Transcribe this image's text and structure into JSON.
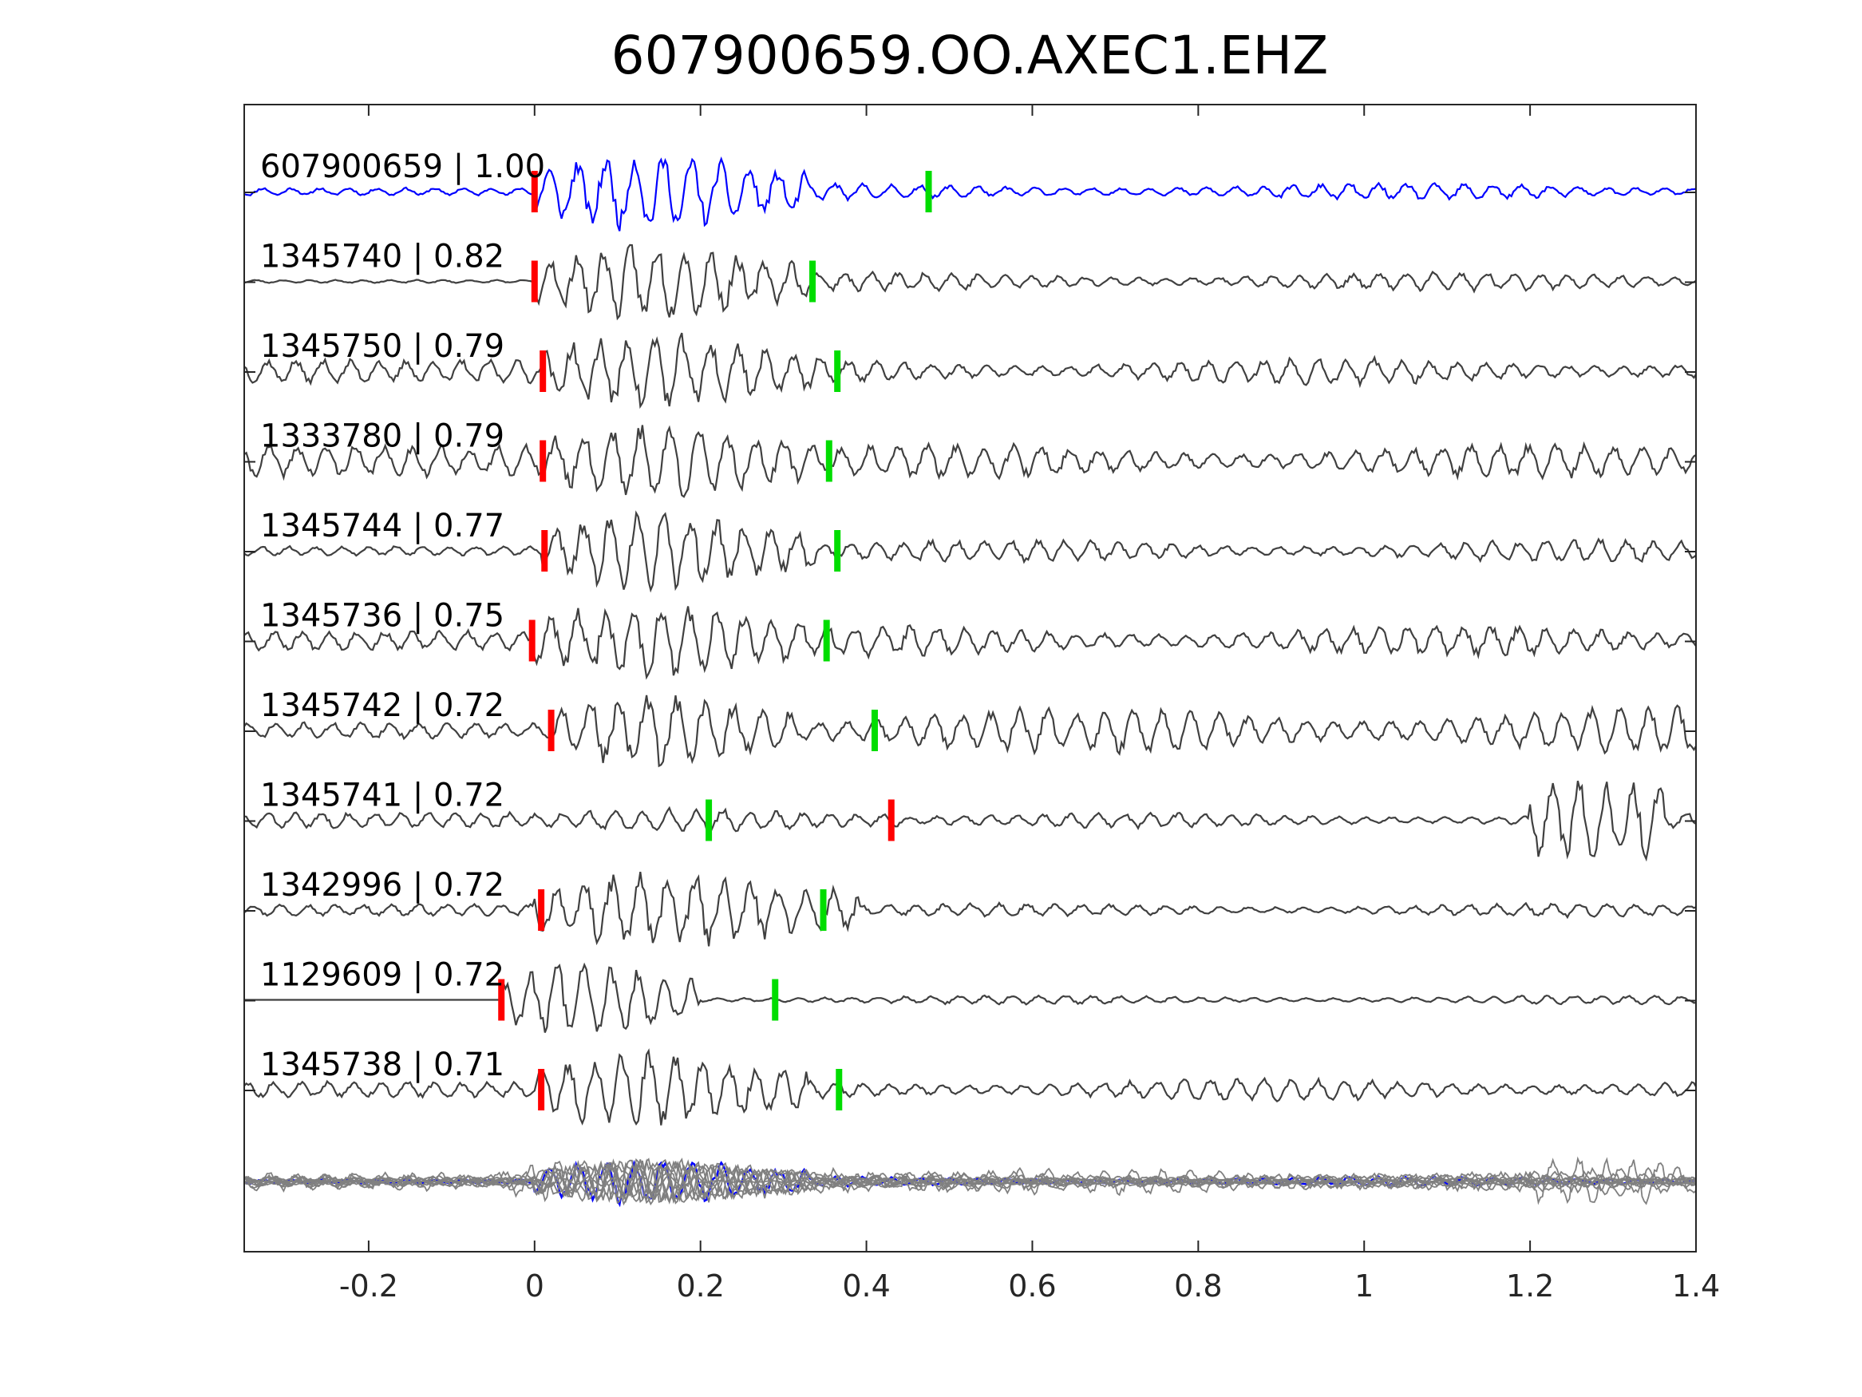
{
  "chart_data": {
    "type": "line",
    "title": "607900659.OO.AXEC1.EHZ",
    "xlabel": "",
    "ylabel": "",
    "xlim": [
      -0.35,
      1.4
    ],
    "xticks": [
      -0.2,
      0,
      0.2,
      0.4,
      0.6,
      0.8,
      1,
      1.2,
      1.4
    ],
    "xtick_labels": [
      "-0.2",
      "0",
      "0.2",
      "0.4",
      "0.6",
      "0.8",
      "1",
      "1.2",
      "1.4"
    ],
    "grid": false,
    "colors": {
      "reference_trace": "#0000ff",
      "neighbor_trace": "#404040",
      "stack_trace": "#808080",
      "p_pick": "#ff0000",
      "s_pick": "#00dd00",
      "axes": "#262626"
    },
    "series": [
      {
        "name": "607900659",
        "score": "1.00",
        "label": "607900659 | 1.00",
        "p_pick": 0.0,
        "s_pick": 0.475,
        "reference": true,
        "seed": 11,
        "quiet_amp": 0.1,
        "burst_amp": 1.0,
        "tail_amp": 0.22,
        "burst_start": 0.0,
        "burst_end": 0.33,
        "late_burst": null
      },
      {
        "name": "1345740",
        "score": "0.82",
        "label": "1345740 | 0.82",
        "p_pick": 0.0,
        "s_pick": 0.335,
        "reference": false,
        "seed": 23,
        "quiet_amp": 0.04,
        "burst_amp": 1.0,
        "tail_amp": 0.25,
        "burst_start": 0.0,
        "burst_end": 0.33,
        "late_burst": null
      },
      {
        "name": "1345750",
        "score": "0.79",
        "label": "1345750 | 0.79",
        "p_pick": 0.01,
        "s_pick": 0.365,
        "reference": false,
        "seed": 37,
        "quiet_amp": 0.3,
        "burst_amp": 1.0,
        "tail_amp": 0.35,
        "burst_start": 0.01,
        "burst_end": 0.34,
        "late_burst": null
      },
      {
        "name": "1333780",
        "score": "0.79",
        "label": "1333780 | 0.79",
        "p_pick": 0.01,
        "s_pick": 0.355,
        "reference": false,
        "seed": 41,
        "quiet_amp": 0.4,
        "burst_amp": 1.0,
        "tail_amp": 0.45,
        "burst_start": 0.01,
        "burst_end": 0.34,
        "late_burst": null
      },
      {
        "name": "1345744",
        "score": "0.77",
        "label": "1345744 | 0.77",
        "p_pick": 0.012,
        "s_pick": 0.365,
        "reference": false,
        "seed": 53,
        "quiet_amp": 0.12,
        "burst_amp": 1.0,
        "tail_amp": 0.3,
        "burst_start": 0.01,
        "burst_end": 0.34,
        "late_burst": null
      },
      {
        "name": "1345736",
        "score": "0.75",
        "label": "1345736 | 0.75",
        "p_pick": -0.003,
        "s_pick": 0.352,
        "reference": false,
        "seed": 67,
        "quiet_amp": 0.25,
        "burst_amp": 1.0,
        "tail_amp": 0.4,
        "burst_start": 0.0,
        "burst_end": 0.33,
        "late_burst": null
      },
      {
        "name": "1345742",
        "score": "0.72",
        "label": "1345742 | 0.72",
        "p_pick": 0.02,
        "s_pick": 0.41,
        "reference": false,
        "seed": 71,
        "quiet_amp": 0.2,
        "burst_amp": 1.0,
        "tail_amp": 0.6,
        "burst_start": 0.02,
        "burst_end": 0.32,
        "late_burst": null
      },
      {
        "name": "1345741",
        "score": "0.72",
        "label": "1345741 | 0.72",
        "p_pick": 0.43,
        "s_pick": 0.21,
        "reference": false,
        "seed": 83,
        "quiet_amp": 0.2,
        "burst_amp": 0.3,
        "tail_amp": 0.2,
        "burst_start": 0.0,
        "burst_end": 0.45,
        "late_burst": [
          1.2,
          1.36
        ]
      },
      {
        "name": "1342996",
        "score": "0.72",
        "label": "1342996 | 0.72",
        "p_pick": 0.008,
        "s_pick": 0.348,
        "reference": false,
        "seed": 97,
        "quiet_amp": 0.15,
        "burst_amp": 1.0,
        "tail_amp": 0.18,
        "burst_start": 0.0,
        "burst_end": 0.39,
        "late_burst": null
      },
      {
        "name": "1129609",
        "score": "0.72",
        "label": "1129609 | 0.72",
        "p_pick": -0.04,
        "s_pick": 0.29,
        "reference": false,
        "seed": 103,
        "quiet_amp": 0.0,
        "burst_amp": 1.0,
        "tail_amp": 0.12,
        "burst_start": -0.04,
        "burst_end": 0.2,
        "late_burst": null
      },
      {
        "name": "1345738",
        "score": "0.71",
        "label": "1345738 | 0.71",
        "p_pick": 0.008,
        "s_pick": 0.367,
        "reference": false,
        "seed": 113,
        "quiet_amp": 0.2,
        "burst_amp": 1.0,
        "tail_amp": 0.3,
        "burst_start": 0.0,
        "burst_end": 0.33,
        "late_burst": null
      }
    ]
  }
}
